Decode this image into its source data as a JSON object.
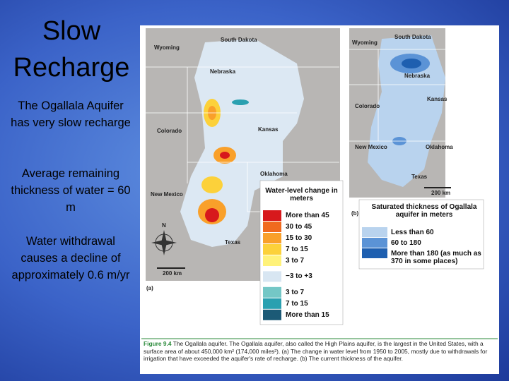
{
  "slide": {
    "title": "Slow Recharge",
    "paragraphs": [
      "The Ogallala Aquifer has very slow recharge",
      "Average remaining thickness of water = 60 m",
      "Water withdrawal causes a decline of approximately 0.6 m/yr"
    ]
  },
  "figure": {
    "map_a": {
      "states": [
        "Wyoming",
        "South Dakota",
        "Nebraska",
        "Colorado",
        "Kansas",
        "Oklahoma",
        "New Mexico",
        "Texas"
      ],
      "north": "N",
      "scale": "200 km",
      "panel": "(a)"
    },
    "legend_a": {
      "title": "Water-level change in meters",
      "items": [
        {
          "label": "More than 45",
          "color": "#d7191c"
        },
        {
          "label": "30 to 45",
          "color": "#f06a1e"
        },
        {
          "label": "15 to 30",
          "color": "#f9a02a"
        },
        {
          "label": "7 to 15",
          "color": "#fcd13a"
        },
        {
          "label": "3 to 7",
          "color": "#fff27a"
        },
        {
          "label": "−3 to +3",
          "color": "#d8e6f2"
        },
        {
          "label": "3 to 7",
          "color": "#74c7c6"
        },
        {
          "label": "7 to 15",
          "color": "#2aa0b0"
        },
        {
          "label": "More than 15",
          "color": "#1c5a76"
        }
      ]
    },
    "map_b": {
      "states": [
        "South Dakota",
        "Wyoming",
        "Nebraska",
        "Kansas",
        "Colorado",
        "New Mexico",
        "Oklahoma",
        "Texas"
      ],
      "scale": "200 km",
      "panel": "(b)"
    },
    "legend_b": {
      "title": "Saturated thickness of Ogallala aquifer in meters",
      "items": [
        {
          "label": "Less than 60",
          "color": "#b9d3ee"
        },
        {
          "label": "60 to 180",
          "color": "#5b93d6"
        },
        {
          "label": "More than 180 (as much as 370 in some places)",
          "color": "#1e5fb0"
        }
      ]
    },
    "caption": {
      "label": "Figure 9.4",
      "text": "The Ogallala aquifer. The Ogallala aquifer, also called the High Plains aquifer, is the largest in the United States, with a surface area of about 450,000 km² (174,000 miles²). (a) The change in water level from 1950 to 2005, mostly due to withdrawals for irrigation that have exceeded the aquifer's rate of recharge. (b) The current thickness of the aquifer."
    }
  }
}
